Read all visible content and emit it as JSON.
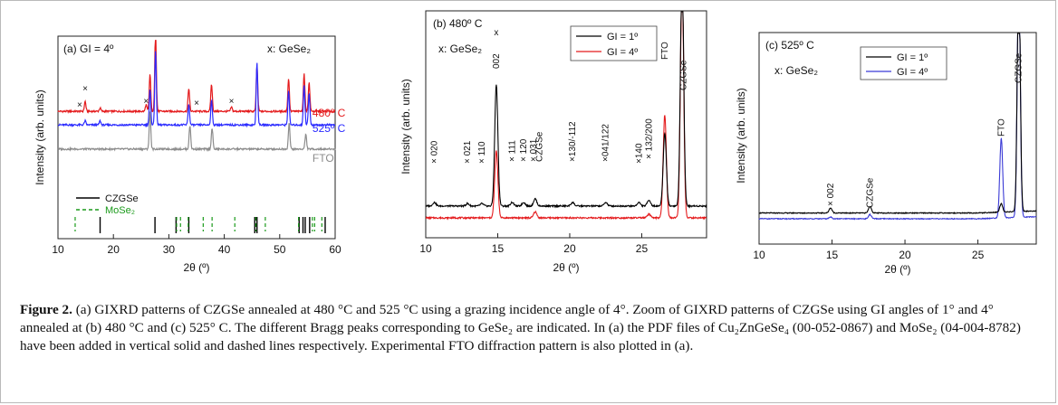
{
  "figure": {
    "caption_label": "Figure 2.",
    "caption_text": " (a) GIXRD patterns of CZGSe annealed at 480 °C and 525 °C using a grazing incidence angle of 4°. Zoom of GIXRD patterns of CZGSe using GI angles of 1° and 4° annealed at (b) 480 °C and (c) 525° C. The different Bragg peaks corresponding to GeSe₂ are indicated. In (a) the PDF files of Cu₂ZnGeSe₄ (00-052-0867) and MoSe₂ (04-004-8782) have been added in vertical solid and dashed lines respectively. Experimental FTO diffraction pattern is also plotted in (a)."
  },
  "chart_data": [
    {
      "type": "line",
      "panel_label": "(a) GI = 4º",
      "annotation": "x: GeSe₂",
      "xlabel": "2θ (º)",
      "ylabel": "Intensity (arb. units)",
      "xlim": [
        10,
        60
      ],
      "xticks": [
        "10",
        "20",
        "30",
        "40",
        "50",
        "60"
      ],
      "y_ticks_shown": false,
      "series": [
        {
          "name": "480º C",
          "color": "#e41a1c",
          "offset": 0.55,
          "peaks": [
            [
              14.9,
              0.12
            ],
            [
              17.6,
              0.04
            ],
            [
              25.9,
              0.08
            ],
            [
              26.6,
              0.45
            ],
            [
              27.6,
              1.0
            ],
            [
              33.6,
              0.28
            ],
            [
              37.7,
              0.33
            ],
            [
              41.3,
              0.05
            ],
            [
              45.9,
              0.55
            ],
            [
              51.6,
              0.4
            ],
            [
              54.4,
              0.45
            ],
            [
              55.3,
              0.35
            ]
          ]
        },
        {
          "name": "525º C",
          "color": "#2b2bff",
          "offset": 0.46,
          "peaks": [
            [
              14.9,
              0.05
            ],
            [
              17.6,
              0.05
            ],
            [
              26.6,
              0.42
            ],
            [
              27.6,
              0.9
            ],
            [
              33.6,
              0.25
            ],
            [
              37.7,
              0.3
            ],
            [
              45.9,
              0.75
            ],
            [
              51.6,
              0.42
            ],
            [
              54.4,
              0.48
            ],
            [
              55.3,
              0.38
            ]
          ]
        },
        {
          "name": "FTO",
          "color": "#8c8c8c",
          "offset": 0.3,
          "peaks": [
            [
              26.6,
              0.45
            ],
            [
              33.8,
              0.28
            ],
            [
              37.8,
              0.25
            ],
            [
              51.7,
              0.32
            ],
            [
              54.7,
              0.18
            ]
          ]
        }
      ],
      "ge_marks_x": [
        14.9,
        25.9,
        35.0,
        41.3
      ],
      "ge_mark_near_axis_x": 13.9,
      "legend": [
        {
          "label": "CZGSe",
          "style": "solid",
          "color": "#000000"
        },
        {
          "label": "MoSe₂",
          "style": "dashed",
          "color": "#1a9a1a"
        }
      ],
      "czgse_lines": [
        17.6,
        27.5,
        31.3,
        33.6,
        45.5,
        45.9,
        53.5,
        54.2,
        54.6,
        55.4,
        58.2
      ],
      "mose2_lines": [
        13.1,
        31.4,
        32.1,
        33.5,
        36.2,
        37.8,
        41.9,
        45.7,
        47.4,
        53.4,
        55.9,
        56.3,
        57.6
      ]
    },
    {
      "type": "line",
      "panel_label": "(b) 480º C",
      "annotation": "x: GeSe₂",
      "xlabel": "2θ (º)",
      "ylabel": "Intensity (arb. units)",
      "xlim": [
        10,
        29.5
      ],
      "xticks": [
        "10",
        "15",
        "20",
        "25"
      ],
      "y_ticks_shown": false,
      "series": [
        {
          "name": "GI = 1º",
          "color": "#000000"
        },
        {
          "name": "GI = 4º",
          "color": "#e41a1c"
        }
      ],
      "peak_labels": [
        {
          "x": 10.6,
          "text": "× 020"
        },
        {
          "x": 12.9,
          "text": "× 021"
        },
        {
          "x": 13.9,
          "text": "× 110"
        },
        {
          "x": 14.9,
          "text": "002"
        },
        {
          "x": 16.0,
          "text": "× 111"
        },
        {
          "x": 16.8,
          "text": "× 120"
        },
        {
          "x": 17.5,
          "text": "× 031"
        },
        {
          "x": 17.9,
          "text": "CZGSe"
        },
        {
          "x": 20.2,
          "text": "×130/-112"
        },
        {
          "x": 22.5,
          "text": "×041/122"
        },
        {
          "x": 24.8,
          "text": "×140"
        },
        {
          "x": 25.5,
          "text": "× 132/200"
        },
        {
          "x": 26.6,
          "text": "FTO"
        },
        {
          "x": 27.9,
          "text": "CZGSe"
        }
      ]
    },
    {
      "type": "line",
      "panel_label": "(c) 525º C",
      "annotation": "x: GeSe₂",
      "xlabel": "2θ (º)",
      "ylabel": "Intensity (arb. units)",
      "xlim": [
        10,
        29
      ],
      "xticks": [
        "10",
        "15",
        "20",
        "25"
      ],
      "y_ticks_shown": false,
      "series": [
        {
          "name": "GI = 1º",
          "color": "#000000"
        },
        {
          "name": "GI = 4º",
          "color": "#3b3bd6"
        }
      ],
      "peak_labels": [
        {
          "x": 14.9,
          "text": "× 002"
        },
        {
          "x": 17.6,
          "text": "CZGSe"
        },
        {
          "x": 26.6,
          "text": "FTO"
        },
        {
          "x": 27.8,
          "text": "CZGSe"
        }
      ]
    }
  ]
}
